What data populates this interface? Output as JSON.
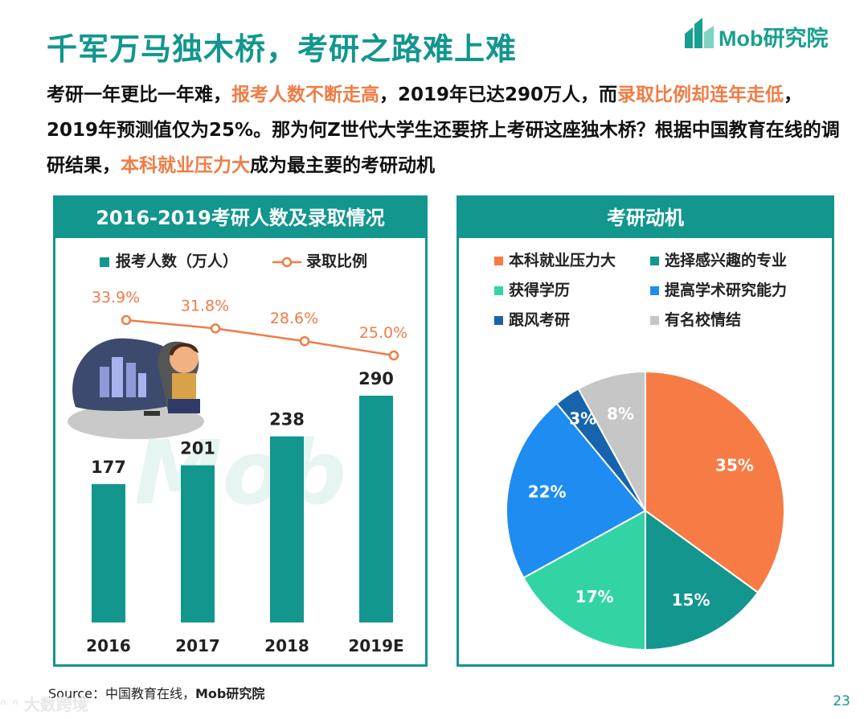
{
  "header": {
    "title": "千军万马独木桥，考研之路难上难",
    "logo_text": "Mob研究院"
  },
  "intro": {
    "p1": "考研一年更比一年难，",
    "h1": "报考人数不断走高",
    "p2": "，2019年已达290万人，而",
    "h2": "录取比例却连年走低",
    "p3": "，2019年预测值仅为25%。那为何Z世代大学生还要挤上考研这座独木桥？根据中国教育在线的调研结果，",
    "h3": "本科就业压力大",
    "p4": "成为最主要的考研动机"
  },
  "left_panel": {
    "title": "2016-2019考研人数及录取情况"
  },
  "right_panel": {
    "title": "考研动机"
  },
  "chart_data": [
    {
      "type": "bar+line",
      "title": "2016-2019考研人数及录取情况",
      "categories": [
        "2016",
        "2017",
        "2018",
        "2019E"
      ],
      "series": [
        {
          "name": "报考人数（万人）",
          "type": "bar",
          "values": [
            177,
            201,
            238,
            290
          ],
          "labels": [
            "177",
            "201",
            "238",
            "290"
          ],
          "color": "#12968e"
        },
        {
          "name": "录取比例",
          "type": "line",
          "values": [
            33.9,
            31.8,
            28.6,
            25.0
          ],
          "labels": [
            "33.9%",
            "31.8%",
            "28.6%",
            "25.0%"
          ],
          "color": "#f07c45"
        }
      ],
      "grid": false
    },
    {
      "type": "pie",
      "title": "考研动机",
      "slices": [
        {
          "name": "本科就业压力大",
          "value": 35,
          "label": "35%",
          "color": "#f77b45"
        },
        {
          "name": "选择感兴趣的专业",
          "value": 15,
          "label": "15%",
          "color": "#12968e"
        },
        {
          "name": "获得学历",
          "value": 17,
          "label": "17%",
          "color": "#33d4a4"
        },
        {
          "name": "提高学术研究能力",
          "value": 22,
          "label": "22%",
          "color": "#1e8cf0"
        },
        {
          "name": "跟风考研",
          "value": 3,
          "label": "3%",
          "color": "#1764ac"
        },
        {
          "name": "有名校情结",
          "value": 8,
          "label": "8%",
          "color": "#c6c6c6"
        }
      ],
      "legend": "top"
    }
  ],
  "footer": {
    "source_prefix": "Source：中国教育在线，",
    "source_org": "Mob研究院",
    "page_number": "23",
    "watermark": "大数跨境"
  }
}
